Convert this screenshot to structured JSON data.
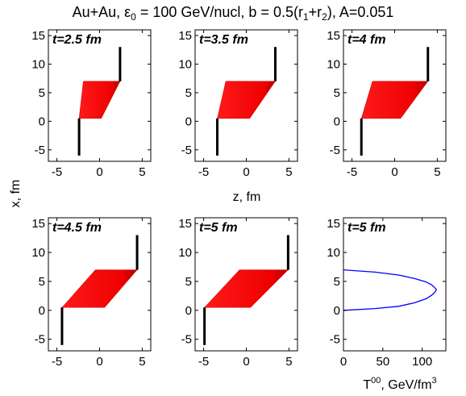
{
  "figure": {
    "title": "Au+Au, ε",
    "title_sub": "0",
    "title_rest": " = 100 GeV/nucl, b = 0.5(r",
    "title_sub1": "1",
    "title_mid": "+r",
    "title_sub2": "2",
    "title_end": "), A=0.051"
  },
  "shared_labels": {
    "ylabel": "x, fm",
    "xlabel_z": "z, fm",
    "xlabel_t00": "T",
    "xlabel_t00_sup": "00",
    "xlabel_t00_mid": ", GeV/fm",
    "xlabel_t00_sup2": "3"
  },
  "chart_data": [
    {
      "type": "area",
      "annotation": "t=2.5 fm",
      "xlim": [
        -6,
        6
      ],
      "ylim": [
        -7,
        16
      ],
      "xticks": [
        "-5",
        "0",
        "5"
      ],
      "yticks": [
        "-5",
        "0",
        "5",
        "10",
        "15"
      ],
      "xlabel": "",
      "ylabel": "",
      "region": {
        "x_bottom": [
          -2.4,
          0.2
        ],
        "x_top": [
          -1.9,
          2.4
        ],
        "y_range": [
          0.5,
          7
        ]
      },
      "lines": [
        {
          "x": -2.4,
          "y": [
            -6,
            0.5
          ]
        },
        {
          "x": 2.4,
          "y": [
            7,
            13
          ]
        }
      ]
    },
    {
      "type": "area",
      "annotation": "t=3.5 fm",
      "xlim": [
        -6,
        6
      ],
      "ylim": [
        -7,
        16
      ],
      "xticks": [
        "-5",
        "0",
        "5"
      ],
      "yticks": [
        "-5",
        "0",
        "5",
        "10",
        "15"
      ],
      "xlabel": "",
      "ylabel": "",
      "region": {
        "x_bottom": [
          -3.4,
          0.4
        ],
        "x_top": [
          -2.4,
          3.4
        ],
        "y_range": [
          0.5,
          7
        ]
      },
      "lines": [
        {
          "x": -3.4,
          "y": [
            -6,
            0.5
          ]
        },
        {
          "x": 3.4,
          "y": [
            7,
            13
          ]
        }
      ]
    },
    {
      "type": "area",
      "annotation": "t=4 fm",
      "xlim": [
        -6,
        6
      ],
      "ylim": [
        -7,
        16
      ],
      "xticks": [
        "-5",
        "0",
        "5"
      ],
      "yticks": [
        "-5",
        "0",
        "5",
        "10",
        "15"
      ],
      "xlabel": "",
      "ylabel": "",
      "region": {
        "x_bottom": [
          -3.9,
          0.7
        ],
        "x_top": [
          -2.6,
          3.9
        ],
        "y_range": [
          0.5,
          7
        ]
      },
      "lines": [
        {
          "x": -3.9,
          "y": [
            -6,
            0.5
          ]
        },
        {
          "x": 3.9,
          "y": [
            7,
            13
          ]
        }
      ]
    },
    {
      "type": "area",
      "annotation": "t=4.5 fm",
      "xlim": [
        -6,
        6
      ],
      "ylim": [
        -7,
        16
      ],
      "xticks": [
        "-5",
        "0",
        "5"
      ],
      "yticks": [
        "-5",
        "0",
        "5",
        "10",
        "15"
      ],
      "xlabel": "",
      "ylabel": "",
      "region": {
        "x_bottom": [
          -4.4,
          0.6
        ],
        "x_top": [
          -0.5,
          4.4
        ],
        "y_range": [
          0.5,
          7
        ]
      },
      "lines": [
        {
          "x": -4.4,
          "y": [
            -6,
            0.5
          ]
        },
        {
          "x": 4.4,
          "y": [
            7,
            13
          ]
        }
      ]
    },
    {
      "type": "area",
      "annotation": "t=5 fm",
      "xlim": [
        -6,
        6
      ],
      "ylim": [
        -7,
        16
      ],
      "xticks": [
        "-5",
        "0",
        "5"
      ],
      "yticks": [
        "-5",
        "0",
        "5",
        "10",
        "15"
      ],
      "xlabel": "",
      "ylabel": "",
      "region": {
        "x_bottom": [
          -4.9,
          0.5
        ],
        "x_top": [
          -0.8,
          4.9
        ],
        "y_range": [
          0.5,
          7
        ]
      },
      "lines": [
        {
          "x": -4.9,
          "y": [
            -6,
            0.5
          ]
        },
        {
          "x": 4.9,
          "y": [
            7,
            13
          ]
        }
      ]
    },
    {
      "type": "line",
      "annotation": "t=5 fm",
      "xlim": [
        0,
        130
      ],
      "ylim": [
        -7,
        16
      ],
      "xticks": [
        "0",
        "50",
        "100"
      ],
      "yticks": [
        "-5",
        "0",
        "5",
        "10",
        "15"
      ],
      "xlabel": "",
      "ylabel": "",
      "series": [
        {
          "color": "#0000ff",
          "x": [
            0,
            40,
            70,
            90,
            105,
            112,
            116,
            118,
            116,
            112,
            105,
            90,
            70,
            40,
            0
          ],
          "y": [
            7,
            6.6,
            6.1,
            5.5,
            4.9,
            4.4,
            3.9,
            3.6,
            3.1,
            2.6,
            2.0,
            1.3,
            0.7,
            0.3,
            0
          ]
        }
      ]
    }
  ]
}
